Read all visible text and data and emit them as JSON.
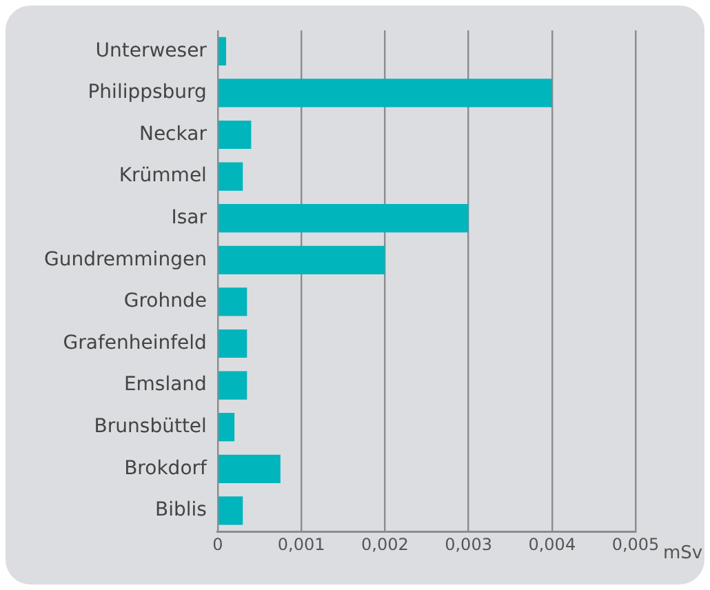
{
  "chart_data": {
    "type": "bar",
    "orientation": "horizontal",
    "xlabel": "mSv",
    "categories": [
      "Unterweser",
      "Philippsburg",
      "Neckar",
      "Krümmel",
      "Isar",
      "Gundremmingen",
      "Grohnde",
      "Grafenheinfeld",
      "Emsland",
      "Brunsbüttel",
      "Brokdorf",
      "Biblis"
    ],
    "values": [
      0.0001,
      0.004,
      0.0004,
      0.0003,
      0.003,
      0.002,
      0.00035,
      0.00035,
      0.00035,
      0.0002,
      0.00075,
      0.0003
    ],
    "color": "#00b5bb",
    "xlim": [
      0,
      0.005
    ],
    "xticks": [
      0,
      {
        "value": 0.001,
        "label": "0,001"
      },
      {
        "value": 0.002,
        "label": "0,002"
      },
      {
        "value": 0.003,
        "label": "0,003"
      },
      {
        "value": 0.004,
        "label": "0,004"
      },
      {
        "value": 0.005,
        "label": "0,005"
      }
    ],
    "grid": "x"
  }
}
